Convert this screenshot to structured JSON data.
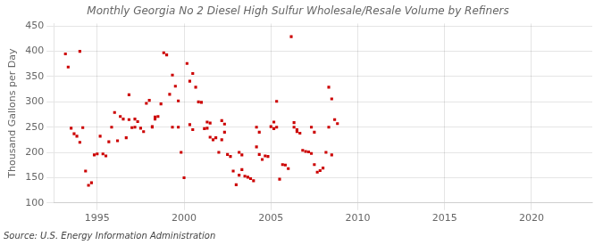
{
  "chart_data": {
    "type": "scatter",
    "title": "Monthly Georgia No 2 Diesel High Sulfur Wholesale/Resale Volume by Refiners",
    "ylabel": "Thousand Gallons per Day",
    "annotations": [
      "Source: U.S. Energy Information Administration"
    ],
    "color": "#cc0000",
    "marker": "square",
    "grid": true,
    "xlim": [
      1992.5,
      2023.5
    ],
    "ylim": [
      100,
      455
    ],
    "xticks": [
      1995,
      2000,
      2005,
      2010,
      2015,
      2020
    ],
    "yticks": [
      100,
      150,
      200,
      250,
      300,
      350,
      400,
      450
    ],
    "x": [
      1993.17,
      1993.33,
      1993.5,
      1993.67,
      1993.83,
      1994.0,
      1994.17,
      1994.33,
      1994.5,
      1994.67,
      1994.83,
      1995.0,
      1995.17,
      1995.33,
      1995.5,
      1995.67,
      1995.83,
      1996.0,
      1996.17,
      1996.33,
      1996.5,
      1996.67,
      1996.83,
      1997.0,
      1997.17,
      1997.33,
      1997.5,
      1997.67,
      1997.83,
      1998.0,
      1998.17,
      1998.33,
      1998.5,
      1998.67,
      1998.83,
      1999.0,
      1999.17,
      1999.33,
      1999.5,
      1999.67,
      1999.83,
      2000.0,
      2000.17,
      2000.33,
      2000.5,
      2000.67,
      2000.83,
      2001.0,
      2001.17,
      2001.33,
      2001.5,
      2001.67,
      2001.83,
      2002.0,
      2002.17,
      2002.33,
      2002.5,
      2002.67,
      2002.83,
      2003.0,
      2003.17,
      2003.33,
      2003.5,
      2003.67,
      2003.83,
      2004.0,
      2004.17,
      2004.33,
      2004.5,
      2004.67,
      2004.83,
      2005.0,
      2005.17,
      2005.33,
      2005.5,
      2005.67,
      2005.83,
      2006.0,
      2006.17,
      2006.33,
      2006.5,
      2006.67,
      2006.83,
      2007.0,
      2007.17,
      2007.33,
      2007.5,
      2007.67,
      2007.83,
      2008.0,
      2008.17,
      2008.33,
      2008.5,
      2008.67,
      2008.83,
      1994.0,
      1996.83,
      1997.17,
      1998.17,
      1998.33,
      1999.33,
      1999.67,
      2000.33,
      2000.5,
      2001.33,
      2001.5,
      2002.17,
      2002.33,
      2003.17,
      2003.33,
      2004.17,
      2004.33,
      2005.17,
      2005.33,
      2006.33,
      2006.5,
      2007.33,
      2007.5,
      2008.33,
      2008.5
    ],
    "values": [
      395,
      369,
      248,
      237,
      232,
      220,
      249,
      163,
      135,
      140,
      195,
      197,
      232,
      197,
      193,
      221,
      250,
      279,
      223,
      271,
      266,
      229,
      314,
      249,
      266,
      261,
      248,
      241,
      297,
      303,
      251,
      266,
      271,
      296,
      397,
      393,
      315,
      353,
      331,
      302,
      200,
      150,
      376,
      341,
      356,
      329,
      300,
      299,
      247,
      260,
      258,
      225,
      229,
      200,
      263,
      256,
      196,
      192,
      163,
      136,
      155,
      166,
      153,
      151,
      148,
      144,
      211,
      196,
      186,
      193,
      192,
      251,
      247,
      301,
      147,
      176,
      175,
      168,
      429,
      259,
      241,
      238,
      204,
      202,
      201,
      198,
      176,
      161,
      164,
      169,
      200,
      329,
      306,
      265,
      257,
      400,
      265,
      250,
      250,
      270,
      250,
      250,
      255,
      245,
      248,
      230,
      225,
      240,
      200,
      195,
      250,
      240,
      260,
      250,
      250,
      245,
      250,
      240,
      250,
      195
    ]
  }
}
